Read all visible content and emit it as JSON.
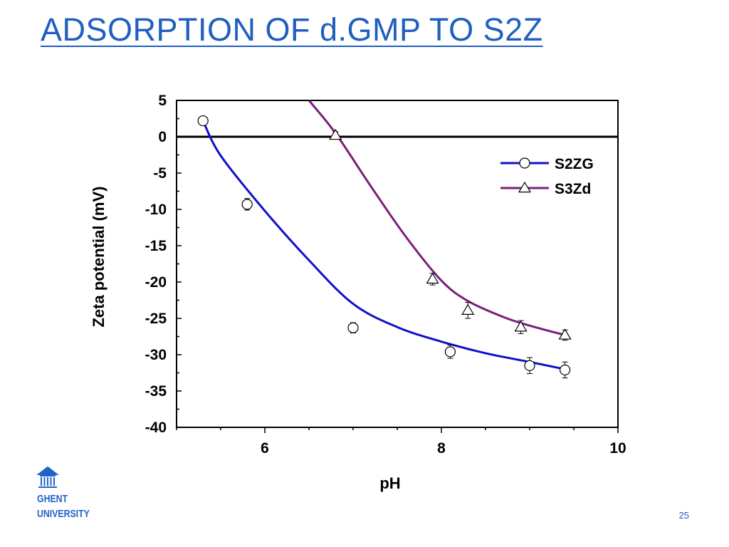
{
  "slide": {
    "title": "ADSORPTION OF d.GMP TO S2Z",
    "page_number": "25"
  },
  "logo": {
    "line1": "GHENT",
    "line2": "UNIVERSITY",
    "icon": "university-building-icon",
    "color": "#1e64c8"
  },
  "chart_data": {
    "type": "line",
    "title": "",
    "xlabel": "pH",
    "ylabel": "Zeta potential (mV)",
    "xlim": [
      5,
      10
    ],
    "ylim": [
      -40,
      5
    ],
    "xticks": [
      6,
      8,
      10
    ],
    "yticks": [
      5,
      0,
      -5,
      -10,
      -15,
      -20,
      -25,
      -30,
      -35,
      -40
    ],
    "x_tick_labels": [
      "6",
      "8",
      "10"
    ],
    "y_tick_labels": [
      "5",
      "0",
      "-5",
      "-10",
      "-15",
      "-20",
      "-25",
      "-30",
      "-35",
      "-40"
    ],
    "zero_line": true,
    "grid": false,
    "legend_position": "top-right",
    "series": [
      {
        "name": "S2ZG",
        "color": "#1010c8",
        "marker": "circle",
        "x": [
          5.3,
          5.8,
          7.0,
          8.1,
          9.0,
          9.4
        ],
        "y": [
          2.2,
          -9.3,
          -26.3,
          -29.6,
          -31.5,
          -32.1
        ],
        "error": [
          0.5,
          0.8,
          0.7,
          0.9,
          1.1,
          1.1
        ],
        "fit": [
          [
            5.3,
            2.2
          ],
          [
            5.5,
            -2.6
          ],
          [
            6.0,
            -10.2
          ],
          [
            6.5,
            -17.0
          ],
          [
            7.0,
            -23.0
          ],
          [
            7.5,
            -26.2
          ],
          [
            8.0,
            -28.2
          ],
          [
            8.5,
            -29.8
          ],
          [
            9.0,
            -31.0
          ],
          [
            9.4,
            -32.0
          ]
        ]
      },
      {
        "name": "S3Zd",
        "color": "#7a1f7a",
        "marker": "triangle",
        "x": [
          6.8,
          7.9,
          8.3,
          8.9,
          9.4
        ],
        "y": [
          0.2,
          -19.6,
          -23.9,
          -26.2,
          -27.3
        ],
        "error": [
          0.5,
          0.8,
          1.1,
          0.9,
          0.7
        ],
        "fit": [
          [
            6.5,
            5.0
          ],
          [
            6.8,
            0.5
          ],
          [
            7.2,
            -6.8
          ],
          [
            7.6,
            -13.8
          ],
          [
            8.0,
            -19.8
          ],
          [
            8.3,
            -22.6
          ],
          [
            8.7,
            -24.8
          ],
          [
            9.0,
            -26.0
          ],
          [
            9.4,
            -27.3
          ]
        ]
      }
    ]
  }
}
